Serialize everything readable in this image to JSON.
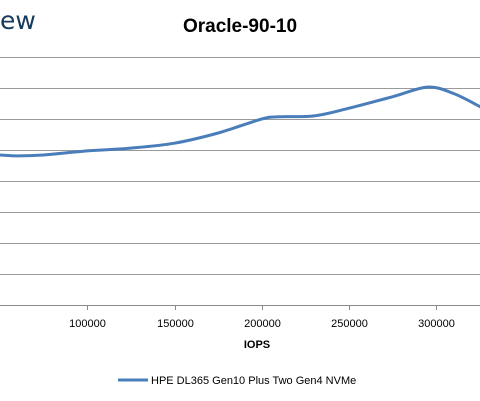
{
  "logo": {
    "text": "ew"
  },
  "chart_data": {
    "type": "line",
    "title": "Oracle-90-10",
    "xlabel": "IOPS",
    "ylabel": "",
    "x_ticks": [
      100000,
      150000,
      200000,
      250000,
      300000
    ],
    "x_tick_labels": [
      "100000",
      "150000",
      "200000",
      "250000",
      "300000"
    ],
    "xlim": [
      50000,
      325000
    ],
    "y_gridlines": [
      0,
      1,
      2,
      3,
      4,
      5,
      6,
      7,
      8
    ],
    "ylim": [
      0,
      8
    ],
    "grid": true,
    "legend": "bottom",
    "series": [
      {
        "name": "HPE DL365 Gen10 Plus Two Gen4 NVMe",
        "color": "#4a7ebb",
        "points": [
          [
            50000,
            4.84
          ],
          [
            60000,
            4.81
          ],
          [
            75000,
            4.84
          ],
          [
            100000,
            4.97
          ],
          [
            125000,
            5.06
          ],
          [
            150000,
            5.22
          ],
          [
            175000,
            5.55
          ],
          [
            200000,
            6.0
          ],
          [
            210000,
            6.07
          ],
          [
            230000,
            6.1
          ],
          [
            250000,
            6.35
          ],
          [
            275000,
            6.72
          ],
          [
            295000,
            7.03
          ],
          [
            310000,
            6.82
          ],
          [
            325000,
            6.4
          ]
        ]
      }
    ]
  }
}
